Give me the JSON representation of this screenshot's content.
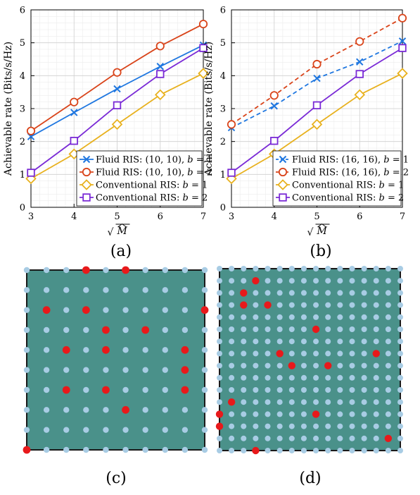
{
  "chart_data": [
    {
      "type": "line",
      "caption": "(a)",
      "xlabel": "√M̂",
      "ylabel": "Achievable rate (Bits/s/Hz)",
      "x": [
        3,
        4,
        5,
        6,
        7
      ],
      "xlim": [
        3,
        7
      ],
      "ylim": [
        0,
        6
      ],
      "xticks": [
        3,
        4,
        5,
        6,
        7
      ],
      "yticks": [
        0,
        1,
        2,
        3,
        4,
        5,
        6
      ],
      "grid": true,
      "minor_grid": true,
      "legend_position": "bottom-right",
      "series": [
        {
          "name": "Fluid RIS: (10, 10), b = 1",
          "values": [
            2.15,
            2.88,
            3.6,
            4.28,
            4.93
          ],
          "color": "#1f77e0",
          "marker": "x",
          "dash": "solid"
        },
        {
          "name": "Fluid RIS: (10, 10), b = 2",
          "values": [
            2.32,
            3.2,
            4.1,
            4.9,
            5.57
          ],
          "color": "#d9441a",
          "marker": "circle",
          "dash": "solid"
        },
        {
          "name": "Conventional RIS: b = 1",
          "values": [
            0.87,
            1.62,
            2.52,
            3.42,
            4.07
          ],
          "color": "#e8b11e",
          "marker": "diamond",
          "dash": "solid"
        },
        {
          "name": "Conventional RIS: b = 2",
          "values": [
            1.05,
            2.02,
            3.1,
            4.05,
            4.84
          ],
          "color": "#7a2ad6",
          "marker": "square",
          "dash": "solid"
        }
      ]
    },
    {
      "type": "line",
      "caption": "(b)",
      "xlabel": "√M̂",
      "ylabel": "Achievable rate (Bits/s/Hz)",
      "x": [
        3,
        4,
        5,
        6,
        7
      ],
      "xlim": [
        3,
        7
      ],
      "ylim": [
        0,
        6
      ],
      "xticks": [
        3,
        4,
        5,
        6,
        7
      ],
      "yticks": [
        0,
        1,
        2,
        3,
        4,
        5,
        6
      ],
      "grid": true,
      "minor_grid": true,
      "legend_position": "bottom-right",
      "series": [
        {
          "name": "Fluid RIS: (16, 16), b = 1",
          "values": [
            2.42,
            3.08,
            3.92,
            4.42,
            5.05
          ],
          "color": "#1f77e0",
          "marker": "x",
          "dash": "dashed"
        },
        {
          "name": "Fluid RIS: (16, 16), b = 2",
          "values": [
            2.52,
            3.4,
            4.35,
            5.04,
            5.75
          ],
          "color": "#d9441a",
          "marker": "circle",
          "dash": "dashed"
        },
        {
          "name": "Conventional RIS: b = 1",
          "values": [
            0.87,
            1.62,
            2.52,
            3.42,
            4.07
          ],
          "color": "#e8b11e",
          "marker": "diamond",
          "dash": "solid"
        },
        {
          "name": "Conventional RIS: b = 2",
          "values": [
            1.05,
            2.02,
            3.1,
            4.05,
            4.84
          ],
          "color": "#7a2ad6",
          "marker": "square",
          "dash": "solid"
        }
      ]
    },
    {
      "type": "scatter",
      "caption": "(c)",
      "grid_size": [
        10,
        10
      ],
      "board_color": "#4a918a",
      "inactive_color": "#a8cce4",
      "active_color": "#e8191b",
      "active_cells": [
        [
          0,
          3
        ],
        [
          0,
          5
        ],
        [
          2,
          1
        ],
        [
          2,
          3
        ],
        [
          2,
          9
        ],
        [
          3,
          4
        ],
        [
          3,
          6
        ],
        [
          4,
          2
        ],
        [
          4,
          4
        ],
        [
          4,
          8
        ],
        [
          5,
          8
        ],
        [
          6,
          2
        ],
        [
          6,
          4
        ],
        [
          6,
          8
        ],
        [
          7,
          5
        ],
        [
          9,
          0
        ]
      ]
    },
    {
      "type": "scatter",
      "caption": "(d)",
      "grid_size": [
        16,
        16
      ],
      "board_color": "#4a918a",
      "inactive_color": "#a8cce4",
      "active_color": "#e8191b",
      "active_cells": [
        [
          1,
          3
        ],
        [
          2,
          2
        ],
        [
          3,
          2
        ],
        [
          3,
          4
        ],
        [
          5,
          8
        ],
        [
          7,
          5
        ],
        [
          7,
          13
        ],
        [
          8,
          6
        ],
        [
          8,
          9
        ],
        [
          11,
          1
        ],
        [
          12,
          0
        ],
        [
          12,
          8
        ],
        [
          13,
          0
        ],
        [
          14,
          14
        ],
        [
          15,
          3
        ]
      ]
    }
  ]
}
